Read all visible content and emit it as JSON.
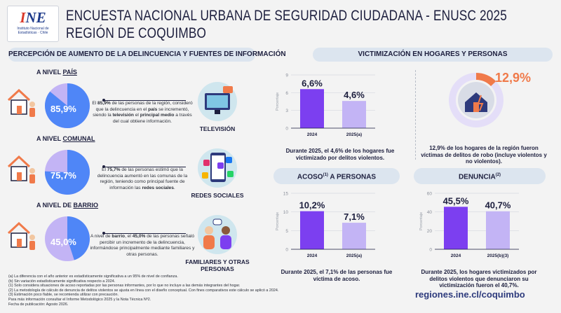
{
  "header": {
    "logo_mark_a": "I",
    "logo_mark_b": "N",
    "logo_mark_c": "E",
    "logo_org": "Instituto Nacional de Estadísticas · Chile",
    "title_line1": "ENCUESTA NACIONAL URBANA DE SEGURIDAD CIUDADANA - ENUSC 2025",
    "title_line2": "REGIÓN DE COQUIMBO"
  },
  "left_section": {
    "heading": "PERCEPCIÓN DE AUMENTO DE LA DELINCUENCIA Y FUENTES DE INFORMACIÓN",
    "levels": [
      {
        "prefix": "A NIVEL ",
        "name": "PAÍS",
        "pct": "85,9%",
        "fraction": 0.859,
        "text_a": "El ",
        "text_b": "85,9%",
        "text_c": " de las personas de la región, consideró que la delincuencia en el ",
        "text_d": "país",
        "text_e": " se incrementó, siendo la ",
        "text_f": "televisión",
        "text_g": " el ",
        "text_h": "principal medio",
        "text_i": " a través del cual obtiene información.",
        "media": "TELEVISIÓN",
        "media_icon": "television-icon"
      },
      {
        "prefix": "A NIVEL ",
        "name": "COMUNAL",
        "pct": "75,7%",
        "fraction": 0.757,
        "text_a": "El ",
        "text_b": "75,7%",
        "text_c": " de las personas estimó que la delincuencia aumentó en las comunas de la región, teniendo como principal fuente de información las ",
        "text_d": "redes sociales",
        "text_e": ".",
        "text_f": "",
        "text_g": "",
        "text_h": "",
        "text_i": "",
        "media": "REDES SOCIALES",
        "media_icon": "social-media-icon"
      },
      {
        "prefix": "A NIVEL DE ",
        "name": "BARRIO",
        "pct": "45,0%",
        "fraction": 0.45,
        "text_a": "A nivel de ",
        "text_b": "barrio",
        "text_c": ", el ",
        "text_d": "45,0%",
        "text_e": " de las personas señaló percibir un incremento de la delincuencia, informándose principalmente mediante familiares y otras personas.",
        "text_f": "",
        "text_g": "",
        "text_h": "",
        "text_i": "",
        "media": "FAMILIARES Y OTRAS PERSONAS",
        "media_icon": "people-talking-icon"
      }
    ]
  },
  "victim_section": {
    "heading": "VICTIMIZACIÓN EN HOGARES Y PERSONAS",
    "caption": "Durante 2025, el 4,6% de los hogares fue victimizado por delitos violentos.",
    "robbery_pct": "12,9%",
    "robbery_fraction": 0.129,
    "robbery_caption": "12,9% de los hogares  de la región fueron víctimas de delitos de robo (incluye violentos y no violentos)."
  },
  "acoso_section": {
    "heading_a": "ACOSO",
    "heading_sup": "(1)",
    "heading_b": " A PERSONAS",
    "caption": "Durante 2025, el 7,1% de las personas fue víctima de acoso."
  },
  "denuncia_section": {
    "heading": "DENUNCIA",
    "heading_sup": "(2)",
    "caption": "Durante 2025, los hogares victimizados por delitos violentos que denunciaron su victimización fueron el 40,7%."
  },
  "chart_data": [
    {
      "type": "bar",
      "ylabel": "Porcentaje",
      "ylim": [
        0,
        9
      ],
      "yticks": [
        "0",
        "3",
        "6",
        "9"
      ],
      "categories": [
        "2024",
        "2025(a)"
      ],
      "values": [
        6.6,
        4.6
      ],
      "labels": [
        "6,6%",
        "4,6%"
      ]
    },
    {
      "type": "bar",
      "ylabel": "Porcentaje",
      "ylim": [
        0,
        15
      ],
      "yticks": [
        "0",
        "5",
        "10",
        "15"
      ],
      "categories": [
        "2024",
        "2025(a)"
      ],
      "values": [
        10.2,
        7.1
      ],
      "labels": [
        "10,2%",
        "7,1%"
      ]
    },
    {
      "type": "bar",
      "ylabel": "Porcentaje",
      "ylim": [
        0,
        60
      ],
      "yticks": [
        "0",
        "20",
        "40",
        "60"
      ],
      "categories": [
        "2024",
        "2025(b)(3)"
      ],
      "values": [
        45.5,
        40.7
      ],
      "labels": [
        "45,5%",
        "40,7%"
      ]
    }
  ],
  "notes": [
    "(a) La diferencia con el año anterior es estadísticamente significativa a un 95% de nivel de confianza.",
    "(b) Sin variación estadísticamente significativa respecto a 2024.",
    "(1) Solo considera situaciones de acoso reportadas por las personas informantes, por lo que no incluye a las demás integrantes del hogar.",
    "(2) La metodología de cálculo de denuncia de delitos violentos se ajusta en línea con el diseño conceptual. Con fines comparativos este cálculo se aplicó a 2024.",
    "(3) Estimación poco fiable, se recomienda utilizar con precaución.",
    "Para más información consultar el Informe Metodológico 2025 y la Nota Técnica Nº2.",
    "Fecha de publicación: Agosto 2026."
  ],
  "url": "regiones.ine.cl/coquimbo",
  "colors": {
    "purple": "#7c3ff0",
    "lavender": "#c3b4f5",
    "blue": "#4f86f7",
    "orange": "#f07a4a",
    "navy": "#1d1f3e"
  }
}
